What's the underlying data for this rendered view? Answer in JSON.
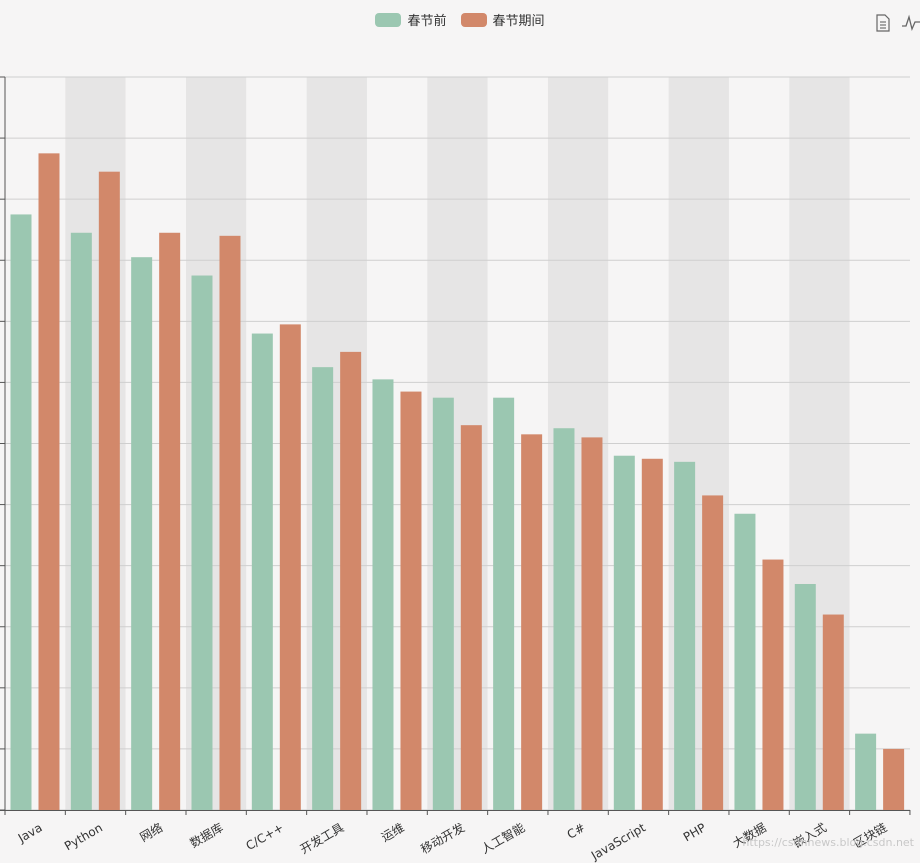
{
  "legend": {
    "series_0": "春节前",
    "series_1": "春节期间"
  },
  "toolbox": {
    "data_view_icon": "data-view-icon",
    "line_switch_icon": "line-chart-icon"
  },
  "watermark": "https://csdnnews.blog.csdn.net",
  "colors": {
    "series_0": "#9bc7b1",
    "series_1": "#d2886a",
    "band_dark": "#e6e5e5",
    "band_light": "#f6f5f5",
    "grid": "#cfcfcf"
  },
  "chart_data": {
    "type": "bar",
    "title": "",
    "xlabel": "",
    "ylabel": "",
    "ylim": [
      0,
      120
    ],
    "categories": [
      "Java",
      "Python",
      "网络",
      "数据库",
      "C/C++",
      "开发工具",
      "运维",
      "移动开发",
      "人工智能",
      "C#",
      "JavaScript",
      "PHP",
      "大数据",
      "嵌入式",
      "区块链"
    ],
    "series": [
      {
        "name": "春节前",
        "values": [
          97.5,
          94.5,
          90.5,
          87.5,
          78,
          72.5,
          70.5,
          67.5,
          67.5,
          62.5,
          58,
          57,
          48.5,
          37,
          12.5
        ]
      },
      {
        "name": "春节期间",
        "values": [
          107.5,
          104.5,
          94.5,
          94,
          79.5,
          75,
          68.5,
          63,
          61.5,
          61,
          57.5,
          51.5,
          41,
          32,
          10
        ]
      }
    ],
    "grid": true,
    "legend_position": "top-center"
  }
}
